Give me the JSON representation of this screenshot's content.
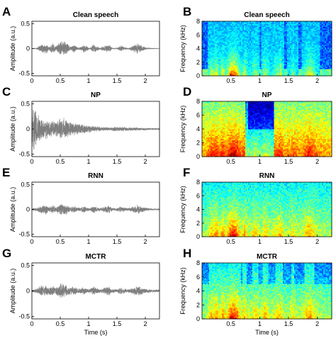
{
  "figure": {
    "waveform_color": "#7f7f7f",
    "colormap": "jet"
  },
  "chart_data": [
    {
      "panel": "A",
      "type": "line",
      "subtype": "waveform",
      "title": "Clean speech",
      "xlabel": "",
      "ylabel": "Amplitude (a.u.)",
      "xlim": [
        0,
        2.25
      ],
      "ylim": [
        -0.55,
        0.55
      ],
      "xticks": [
        0,
        0.5,
        1,
        1.5,
        2
      ],
      "yticks": [
        -0.5,
        0,
        0.5
      ],
      "envelope": {
        "x": [
          0,
          0.08,
          0.12,
          0.16,
          0.2,
          0.25,
          0.3,
          0.36,
          0.42,
          0.5,
          0.55,
          0.6,
          0.68,
          0.74,
          0.8,
          0.86,
          0.92,
          0.98,
          1.02,
          1.08,
          1.14,
          1.2,
          1.28,
          1.36,
          1.42,
          1.46,
          1.52,
          1.58,
          1.64,
          1.7,
          1.78,
          1.86,
          1.92,
          2.0,
          2.1,
          2.25
        ],
        "amplitude": [
          0.0,
          0.01,
          0.05,
          0.1,
          0.08,
          0.12,
          0.04,
          0.12,
          0.05,
          0.17,
          0.18,
          0.14,
          0.04,
          0.1,
          0.03,
          0.04,
          0.09,
          0.05,
          0.01,
          0.1,
          0.06,
          0.02,
          0.06,
          0.1,
          0.02,
          0.01,
          0.03,
          0.07,
          0.03,
          0.01,
          0.06,
          0.12,
          0.08,
          0.03,
          0.01,
          0.0
        ]
      }
    },
    {
      "panel": "B",
      "type": "heatmap",
      "subtype": "spectrogram",
      "title": "Clean speech",
      "xlabel": "",
      "ylabel": "Frequency (kHz)",
      "xlim": [
        0,
        2.25
      ],
      "ylim": [
        0,
        8
      ],
      "xticks": [
        0.5,
        1,
        1.5,
        2
      ],
      "yticks": [
        0,
        2,
        4,
        6,
        8
      ]
    },
    {
      "panel": "C",
      "type": "line",
      "subtype": "waveform",
      "title": "NP",
      "xlabel": "",
      "ylabel": "Amplitude (a.u.)",
      "xlim": [
        0,
        2.25
      ],
      "ylim": [
        -0.55,
        0.55
      ],
      "xticks": [
        0,
        0.5,
        1,
        1.5,
        2
      ],
      "yticks": [
        -0.5,
        0,
        0.5
      ],
      "envelope": {
        "x": [
          0,
          0.05,
          0.1,
          0.15,
          0.2,
          0.25,
          0.3,
          0.35,
          0.4,
          0.5,
          0.55,
          0.6,
          0.7,
          0.8,
          0.9,
          1.0,
          1.1,
          1.2,
          1.3,
          1.4,
          1.5,
          1.6,
          1.7,
          1.8,
          1.9,
          2.0,
          2.1,
          2.25
        ],
        "amplitude": [
          0.5,
          0.45,
          0.3,
          0.25,
          0.2,
          0.22,
          0.15,
          0.2,
          0.15,
          0.22,
          0.25,
          0.2,
          0.15,
          0.12,
          0.1,
          0.08,
          0.07,
          0.05,
          0.04,
          0.04,
          0.05,
          0.05,
          0.04,
          0.04,
          0.03,
          0.03,
          0.02,
          0.02
        ]
      }
    },
    {
      "panel": "D",
      "type": "heatmap",
      "subtype": "spectrogram",
      "title": "NP",
      "xlabel": "",
      "ylabel": "Frequency (kHz)",
      "xlim": [
        0,
        2.25
      ],
      "ylim": [
        0,
        8
      ],
      "xticks": [
        0.5,
        1,
        1.5,
        2
      ],
      "yticks": [
        0,
        2,
        4,
        6,
        8
      ]
    },
    {
      "panel": "E",
      "type": "line",
      "subtype": "waveform",
      "title": "RNN",
      "xlabel": "",
      "ylabel": "Amplitude (a.u.)",
      "xlim": [
        0,
        2.25
      ],
      "ylim": [
        -0.55,
        0.55
      ],
      "xticks": [
        0,
        0.5,
        1,
        1.5,
        2
      ],
      "yticks": [
        -0.5,
        0,
        0.5
      ],
      "envelope": {
        "x": [
          0,
          0.08,
          0.12,
          0.16,
          0.2,
          0.25,
          0.3,
          0.36,
          0.42,
          0.5,
          0.55,
          0.6,
          0.68,
          0.74,
          0.8,
          0.86,
          0.92,
          0.98,
          1.02,
          1.08,
          1.14,
          1.2,
          1.28,
          1.36,
          1.42,
          1.46,
          1.52,
          1.58,
          1.64,
          1.7,
          1.78,
          1.86,
          1.92,
          2.0,
          2.1,
          2.25
        ],
        "amplitude": [
          0.02,
          0.04,
          0.06,
          0.1,
          0.08,
          0.11,
          0.05,
          0.1,
          0.06,
          0.13,
          0.14,
          0.12,
          0.05,
          0.09,
          0.04,
          0.05,
          0.08,
          0.05,
          0.03,
          0.09,
          0.06,
          0.03,
          0.06,
          0.09,
          0.03,
          0.03,
          0.04,
          0.07,
          0.04,
          0.03,
          0.06,
          0.1,
          0.07,
          0.04,
          0.02,
          0.02
        ]
      }
    },
    {
      "panel": "F",
      "type": "heatmap",
      "subtype": "spectrogram",
      "title": "RNN",
      "xlabel": "",
      "ylabel": "Frequency (kHz)",
      "xlim": [
        0,
        2.25
      ],
      "ylim": [
        0,
        8
      ],
      "xticks": [
        0.5,
        1,
        1.5,
        2
      ],
      "yticks": [
        0,
        2,
        4,
        6,
        8
      ]
    },
    {
      "panel": "G",
      "type": "line",
      "subtype": "waveform",
      "title": "MCTR",
      "xlabel": "Time (s)",
      "ylabel": "Amplitude (a.u.)",
      "xlim": [
        0,
        2.25
      ],
      "ylim": [
        -0.55,
        0.55
      ],
      "xticks": [
        0,
        0.5,
        1,
        1.5,
        2
      ],
      "yticks": [
        -0.5,
        0,
        0.5
      ],
      "envelope": {
        "x": [
          0,
          0.08,
          0.12,
          0.16,
          0.2,
          0.25,
          0.3,
          0.36,
          0.42,
          0.5,
          0.55,
          0.6,
          0.68,
          0.74,
          0.8,
          0.86,
          0.92,
          0.98,
          1.02,
          1.08,
          1.14,
          1.2,
          1.28,
          1.36,
          1.42,
          1.46,
          1.52,
          1.58,
          1.64,
          1.7,
          1.78,
          1.86,
          1.92,
          2.0,
          2.1,
          2.25
        ],
        "amplitude": [
          0.03,
          0.05,
          0.08,
          0.12,
          0.1,
          0.13,
          0.07,
          0.12,
          0.08,
          0.15,
          0.16,
          0.14,
          0.07,
          0.1,
          0.06,
          0.06,
          0.09,
          0.06,
          0.04,
          0.1,
          0.07,
          0.04,
          0.07,
          0.1,
          0.04,
          0.04,
          0.05,
          0.08,
          0.05,
          0.04,
          0.07,
          0.11,
          0.08,
          0.05,
          0.03,
          0.03
        ]
      }
    },
    {
      "panel": "H",
      "type": "heatmap",
      "subtype": "spectrogram",
      "title": "MCTR",
      "xlabel": "Time (s)",
      "ylabel": "Frequency (kHz)",
      "xlim": [
        0,
        2.25
      ],
      "ylim": [
        0,
        8
      ],
      "xticks": [
        0.5,
        1,
        1.5,
        2
      ],
      "yticks": [
        0,
        2,
        4,
        6,
        8
      ]
    }
  ]
}
